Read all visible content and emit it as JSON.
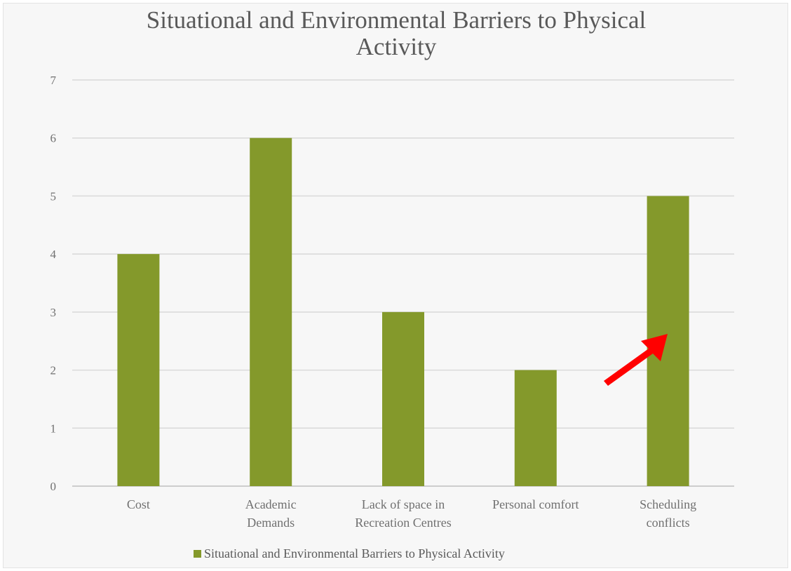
{
  "chart_data": {
    "type": "bar",
    "title": "Situational and Environmental Barriers to Physical Activity",
    "title_lines": [
      "Situational and Environmental Barriers to Physical",
      "Activity"
    ],
    "categories": [
      "Cost",
      "Academic Demands",
      "Lack of space in Recreation Centres",
      "Personal comfort",
      "Scheduling conflicts"
    ],
    "category_lines": [
      [
        "Cost"
      ],
      [
        "Academic",
        "Demands"
      ],
      [
        "Lack of space in",
        "Recreation Centres"
      ],
      [
        "Personal comfort"
      ],
      [
        "Scheduling",
        "conflicts"
      ]
    ],
    "series": [
      {
        "name": "Situational and Environmental Barriers to Physical Activity",
        "values": [
          4,
          6,
          3,
          2,
          5
        ]
      }
    ],
    "ylim": [
      0,
      7
    ],
    "yticks": [
      "0",
      "1",
      "2",
      "3",
      "4",
      "5",
      "6",
      "7"
    ],
    "grid": true,
    "legend_position": "bottom",
    "bar_color": "#84992b",
    "annotation": {
      "type": "arrow",
      "color": "#ff0000",
      "points_to": "Scheduling conflicts"
    }
  }
}
